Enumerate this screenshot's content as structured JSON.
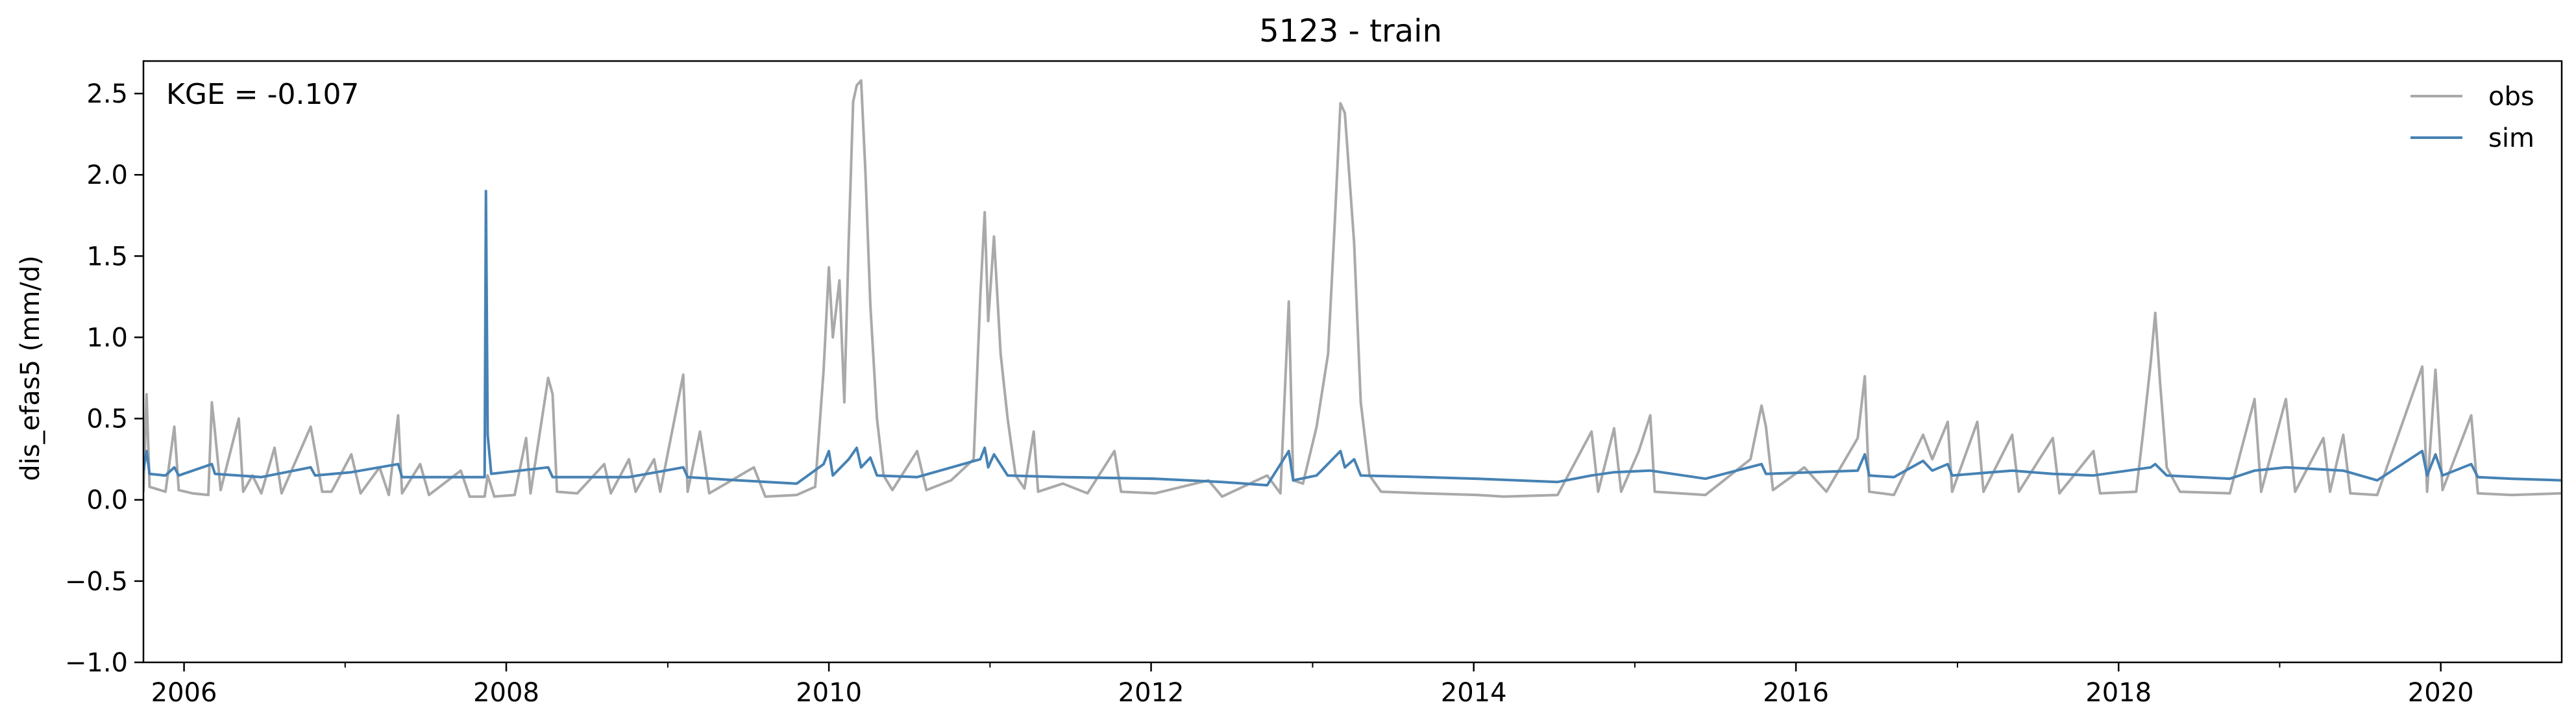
{
  "chart_data": {
    "type": "line",
    "title": "5123 - train",
    "xlabel": "",
    "ylabel": "dis_efas5 (mm/d)",
    "annotation": "KGE = -0.107",
    "xlim": [
      "2005-10-01",
      "2020-10-01"
    ],
    "ylim": [
      -1.0,
      2.7
    ],
    "x_ticks": [
      {
        "date": "2006-01-01",
        "label": "2006"
      },
      {
        "date": "2008-01-01",
        "label": "2008"
      },
      {
        "date": "2010-01-01",
        "label": "2010"
      },
      {
        "date": "2012-01-01",
        "label": "2012"
      },
      {
        "date": "2014-01-01",
        "label": "2014"
      },
      {
        "date": "2016-01-01",
        "label": "2016"
      },
      {
        "date": "2018-01-01",
        "label": "2018"
      },
      {
        "date": "2020-01-01",
        "label": "2020"
      }
    ],
    "x_minor_ticks": [
      "2007-01-01",
      "2009-01-01",
      "2011-01-01",
      "2013-01-01",
      "2015-01-01",
      "2017-01-01",
      "2019-01-01"
    ],
    "y_ticks": [
      {
        "value": -1.0,
        "label": "−1.0"
      },
      {
        "value": -0.5,
        "label": "−0.5"
      },
      {
        "value": 0.0,
        "label": "0.0"
      },
      {
        "value": 0.5,
        "label": "0.5"
      },
      {
        "value": 1.0,
        "label": "1.0"
      },
      {
        "value": 1.5,
        "label": "1.5"
      },
      {
        "value": 2.0,
        "label": "2.0"
      },
      {
        "value": 2.5,
        "label": "2.5"
      }
    ],
    "legend": {
      "position": "top-right",
      "frame": false
    },
    "grid": false,
    "series": [
      {
        "name": "obs",
        "color": "#a9a9a9",
        "points": [
          [
            "2005-10-01",
            0.05
          ],
          [
            "2005-10-08",
            0.65
          ],
          [
            "2005-10-15",
            0.08
          ],
          [
            "2005-11-20",
            0.05
          ],
          [
            "2005-12-10",
            0.45
          ],
          [
            "2005-12-20",
            0.06
          ],
          [
            "2006-01-20",
            0.04
          ],
          [
            "2006-02-25",
            0.03
          ],
          [
            "2006-03-05",
            0.6
          ],
          [
            "2006-03-12",
            0.42
          ],
          [
            "2006-03-25",
            0.06
          ],
          [
            "2006-05-05",
            0.5
          ],
          [
            "2006-05-15",
            0.05
          ],
          [
            "2006-06-05",
            0.15
          ],
          [
            "2006-06-25",
            0.04
          ],
          [
            "2006-07-25",
            0.32
          ],
          [
            "2006-08-10",
            0.04
          ],
          [
            "2006-10-15",
            0.45
          ],
          [
            "2006-10-25",
            0.3
          ],
          [
            "2006-11-10",
            0.05
          ],
          [
            "2006-12-01",
            0.05
          ],
          [
            "2007-01-15",
            0.28
          ],
          [
            "2007-02-05",
            0.04
          ],
          [
            "2007-03-20",
            0.2
          ],
          [
            "2007-04-10",
            0.03
          ],
          [
            "2007-05-01",
            0.52
          ],
          [
            "2007-05-10",
            0.04
          ],
          [
            "2007-06-20",
            0.22
          ],
          [
            "2007-07-10",
            0.03
          ],
          [
            "2007-09-20",
            0.18
          ],
          [
            "2007-10-10",
            0.02
          ],
          [
            "2007-11-13",
            0.02
          ],
          [
            "2007-11-20",
            0.15
          ],
          [
            "2007-12-05",
            0.02
          ],
          [
            "2008-01-20",
            0.03
          ],
          [
            "2008-02-15",
            0.38
          ],
          [
            "2008-02-25",
            0.04
          ],
          [
            "2008-04-05",
            0.75
          ],
          [
            "2008-04-15",
            0.65
          ],
          [
            "2008-04-25",
            0.05
          ],
          [
            "2008-06-10",
            0.04
          ],
          [
            "2008-08-10",
            0.22
          ],
          [
            "2008-08-25",
            0.04
          ],
          [
            "2008-10-05",
            0.25
          ],
          [
            "2008-10-20",
            0.05
          ],
          [
            "2008-12-01",
            0.25
          ],
          [
            "2008-12-15",
            0.05
          ],
          [
            "2009-02-05",
            0.77
          ],
          [
            "2009-02-15",
            0.05
          ],
          [
            "2009-03-15",
            0.42
          ],
          [
            "2009-04-05",
            0.04
          ],
          [
            "2009-07-15",
            0.2
          ],
          [
            "2009-08-10",
            0.02
          ],
          [
            "2009-10-20",
            0.03
          ],
          [
            "2009-12-01",
            0.08
          ],
          [
            "2009-12-20",
            0.8
          ],
          [
            "2010-01-01",
            1.43
          ],
          [
            "2010-01-10",
            1.0
          ],
          [
            "2010-01-25",
            1.35
          ],
          [
            "2010-02-05",
            0.6
          ],
          [
            "2010-02-15",
            1.6
          ],
          [
            "2010-02-25",
            2.45
          ],
          [
            "2010-03-05",
            2.55
          ],
          [
            "2010-03-15",
            2.58
          ],
          [
            "2010-03-25",
            2.0
          ],
          [
            "2010-04-05",
            1.2
          ],
          [
            "2010-04-20",
            0.5
          ],
          [
            "2010-05-05",
            0.15
          ],
          [
            "2010-05-25",
            0.06
          ],
          [
            "2010-07-20",
            0.3
          ],
          [
            "2010-08-10",
            0.06
          ],
          [
            "2010-10-05",
            0.12
          ],
          [
            "2010-11-25",
            0.25
          ],
          [
            "2010-12-10",
            1.25
          ],
          [
            "2010-12-20",
            1.77
          ],
          [
            "2010-12-28",
            1.1
          ],
          [
            "2011-01-10",
            1.62
          ],
          [
            "2011-01-25",
            0.9
          ],
          [
            "2011-02-10",
            0.5
          ],
          [
            "2011-02-28",
            0.15
          ],
          [
            "2011-03-20",
            0.07
          ],
          [
            "2011-04-10",
            0.42
          ],
          [
            "2011-04-20",
            0.05
          ],
          [
            "2011-06-15",
            0.1
          ],
          [
            "2011-08-10",
            0.04
          ],
          [
            "2011-10-10",
            0.3
          ],
          [
            "2011-10-25",
            0.05
          ],
          [
            "2012-01-10",
            0.04
          ],
          [
            "2012-05-10",
            0.12
          ],
          [
            "2012-06-10",
            0.02
          ],
          [
            "2012-09-20",
            0.15
          ],
          [
            "2012-10-20",
            0.04
          ],
          [
            "2012-11-08",
            1.22
          ],
          [
            "2012-11-18",
            0.12
          ],
          [
            "2012-12-10",
            0.1
          ],
          [
            "2013-01-10",
            0.45
          ],
          [
            "2013-02-05",
            0.9
          ],
          [
            "2013-02-20",
            1.7
          ],
          [
            "2013-03-05",
            2.44
          ],
          [
            "2013-03-15",
            2.38
          ],
          [
            "2013-03-25",
            2.0
          ],
          [
            "2013-04-05",
            1.58
          ],
          [
            "2013-04-20",
            0.6
          ],
          [
            "2013-05-10",
            0.15
          ],
          [
            "2013-06-05",
            0.05
          ],
          [
            "2013-09-10",
            0.04
          ],
          [
            "2014-01-10",
            0.03
          ],
          [
            "2014-03-10",
            0.02
          ],
          [
            "2014-07-10",
            0.03
          ],
          [
            "2014-09-25",
            0.42
          ],
          [
            "2014-10-10",
            0.05
          ],
          [
            "2014-11-15",
            0.44
          ],
          [
            "2014-12-01",
            0.05
          ],
          [
            "2015-01-10",
            0.3
          ],
          [
            "2015-02-05",
            0.52
          ],
          [
            "2015-02-15",
            0.05
          ],
          [
            "2015-06-10",
            0.03
          ],
          [
            "2015-09-20",
            0.25
          ],
          [
            "2015-10-15",
            0.58
          ],
          [
            "2015-10-25",
            0.45
          ],
          [
            "2015-11-10",
            0.06
          ],
          [
            "2016-01-20",
            0.2
          ],
          [
            "2016-03-10",
            0.05
          ],
          [
            "2016-05-20",
            0.38
          ],
          [
            "2016-06-05",
            0.76
          ],
          [
            "2016-06-15",
            0.05
          ],
          [
            "2016-08-10",
            0.03
          ],
          [
            "2016-10-15",
            0.4
          ],
          [
            "2016-11-05",
            0.25
          ],
          [
            "2016-12-10",
            0.48
          ],
          [
            "2016-12-20",
            0.05
          ],
          [
            "2017-02-15",
            0.48
          ],
          [
            "2017-03-01",
            0.05
          ],
          [
            "2017-05-05",
            0.4
          ],
          [
            "2017-05-20",
            0.05
          ],
          [
            "2017-08-05",
            0.38
          ],
          [
            "2017-08-20",
            0.04
          ],
          [
            "2017-11-05",
            0.3
          ],
          [
            "2017-11-20",
            0.04
          ],
          [
            "2018-02-10",
            0.05
          ],
          [
            "2018-02-25",
            0.4
          ],
          [
            "2018-03-15",
            0.85
          ],
          [
            "2018-03-25",
            1.15
          ],
          [
            "2018-04-05",
            0.72
          ],
          [
            "2018-04-20",
            0.2
          ],
          [
            "2018-05-20",
            0.05
          ],
          [
            "2018-09-10",
            0.04
          ],
          [
            "2018-11-05",
            0.62
          ],
          [
            "2018-11-20",
            0.05
          ],
          [
            "2019-01-15",
            0.62
          ],
          [
            "2019-02-05",
            0.05
          ],
          [
            "2019-04-10",
            0.38
          ],
          [
            "2019-04-25",
            0.05
          ],
          [
            "2019-05-25",
            0.4
          ],
          [
            "2019-06-10",
            0.04
          ],
          [
            "2019-08-10",
            0.03
          ],
          [
            "2019-11-20",
            0.82
          ],
          [
            "2019-12-01",
            0.05
          ],
          [
            "2019-12-20",
            0.8
          ],
          [
            "2020-01-05",
            0.06
          ],
          [
            "2020-03-10",
            0.52
          ],
          [
            "2020-03-25",
            0.04
          ],
          [
            "2020-06-10",
            0.03
          ],
          [
            "2020-10-01",
            0.04
          ]
        ]
      },
      {
        "name": "sim",
        "color": "#4682b4",
        "points": [
          [
            "2005-10-01",
            0.18
          ],
          [
            "2005-10-08",
            0.3
          ],
          [
            "2005-10-15",
            0.16
          ],
          [
            "2005-11-20",
            0.15
          ],
          [
            "2005-12-10",
            0.2
          ],
          [
            "2005-12-20",
            0.15
          ],
          [
            "2006-03-05",
            0.22
          ],
          [
            "2006-03-12",
            0.16
          ],
          [
            "2006-06-25",
            0.14
          ],
          [
            "2006-10-15",
            0.2
          ],
          [
            "2006-10-25",
            0.15
          ],
          [
            "2007-01-15",
            0.17
          ],
          [
            "2007-05-01",
            0.22
          ],
          [
            "2007-05-10",
            0.14
          ],
          [
            "2007-11-13",
            0.14
          ],
          [
            "2007-11-16",
            1.9
          ],
          [
            "2007-11-20",
            0.4
          ],
          [
            "2007-11-28",
            0.16
          ],
          [
            "2008-04-05",
            0.2
          ],
          [
            "2008-04-15",
            0.14
          ],
          [
            "2008-10-05",
            0.14
          ],
          [
            "2009-02-05",
            0.2
          ],
          [
            "2009-02-15",
            0.14
          ],
          [
            "2009-06-10",
            0.12
          ],
          [
            "2009-10-20",
            0.1
          ],
          [
            "2009-12-20",
            0.22
          ],
          [
            "2010-01-01",
            0.3
          ],
          [
            "2010-01-10",
            0.15
          ],
          [
            "2010-02-15",
            0.25
          ],
          [
            "2010-03-05",
            0.32
          ],
          [
            "2010-03-15",
            0.2
          ],
          [
            "2010-04-05",
            0.26
          ],
          [
            "2010-04-20",
            0.15
          ],
          [
            "2010-07-20",
            0.14
          ],
          [
            "2010-12-10",
            0.25
          ],
          [
            "2010-12-20",
            0.32
          ],
          [
            "2010-12-28",
            0.2
          ],
          [
            "2011-01-10",
            0.28
          ],
          [
            "2011-02-10",
            0.15
          ],
          [
            "2011-06-15",
            0.14
          ],
          [
            "2012-01-10",
            0.13
          ],
          [
            "2012-06-10",
            0.11
          ],
          [
            "2012-09-20",
            0.09
          ],
          [
            "2012-11-08",
            0.3
          ],
          [
            "2012-11-18",
            0.12
          ],
          [
            "2013-01-10",
            0.15
          ],
          [
            "2013-03-05",
            0.3
          ],
          [
            "2013-03-15",
            0.2
          ],
          [
            "2013-04-05",
            0.25
          ],
          [
            "2013-04-20",
            0.15
          ],
          [
            "2013-09-10",
            0.14
          ],
          [
            "2014-01-10",
            0.13
          ],
          [
            "2014-07-10",
            0.11
          ],
          [
            "2014-09-25",
            0.15
          ],
          [
            "2014-11-15",
            0.17
          ],
          [
            "2015-02-05",
            0.18
          ],
          [
            "2015-06-10",
            0.13
          ],
          [
            "2015-10-15",
            0.22
          ],
          [
            "2015-10-25",
            0.16
          ],
          [
            "2016-05-20",
            0.18
          ],
          [
            "2016-06-05",
            0.28
          ],
          [
            "2016-06-15",
            0.15
          ],
          [
            "2016-08-10",
            0.14
          ],
          [
            "2016-10-15",
            0.24
          ],
          [
            "2016-11-05",
            0.18
          ],
          [
            "2016-12-10",
            0.22
          ],
          [
            "2016-12-20",
            0.15
          ],
          [
            "2017-05-05",
            0.18
          ],
          [
            "2017-08-05",
            0.16
          ],
          [
            "2017-11-05",
            0.15
          ],
          [
            "2018-03-15",
            0.2
          ],
          [
            "2018-03-25",
            0.22
          ],
          [
            "2018-04-20",
            0.15
          ],
          [
            "2018-09-10",
            0.13
          ],
          [
            "2018-11-05",
            0.18
          ],
          [
            "2019-01-15",
            0.2
          ],
          [
            "2019-05-25",
            0.18
          ],
          [
            "2019-08-10",
            0.12
          ],
          [
            "2019-11-20",
            0.3
          ],
          [
            "2019-12-01",
            0.15
          ],
          [
            "2019-12-20",
            0.28
          ],
          [
            "2020-01-05",
            0.15
          ],
          [
            "2020-03-10",
            0.22
          ],
          [
            "2020-03-25",
            0.14
          ],
          [
            "2020-06-10",
            0.13
          ],
          [
            "2020-10-01",
            0.12
          ]
        ]
      }
    ]
  }
}
